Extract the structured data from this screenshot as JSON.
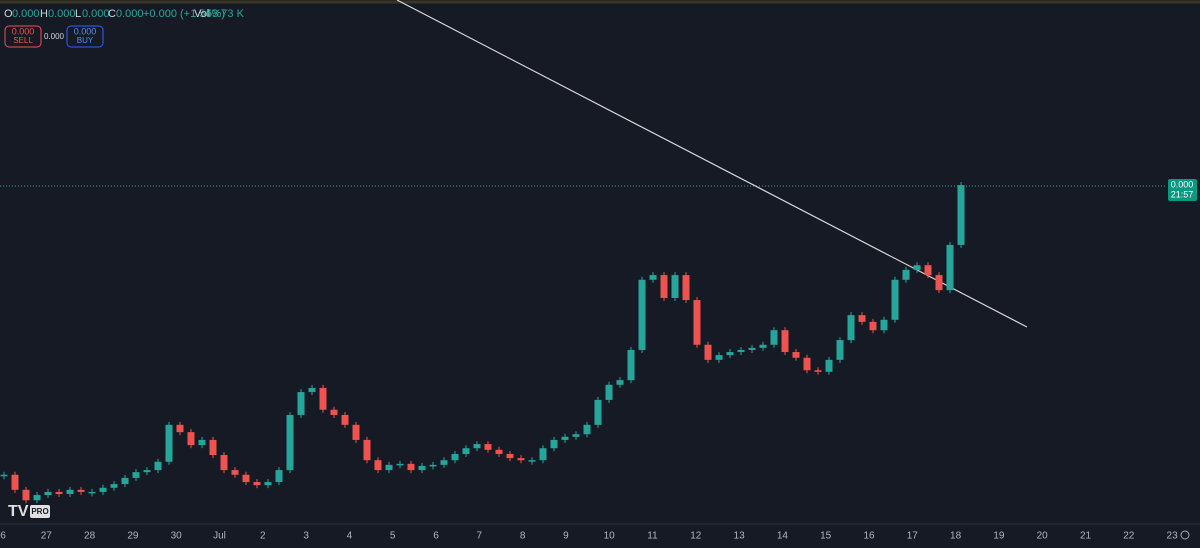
{
  "header": {
    "open_label": "O",
    "open": "0.000",
    "high_label": "H",
    "high": "0.000",
    "low_label": "L",
    "low": "0.000",
    "close_label": "C",
    "close": "0.000",
    "change": "+0.000 (+1.54%)",
    "volume_label": "Vol",
    "volume": "53.73 K"
  },
  "order_panel": {
    "sell_price": "0.000",
    "sell_label": "SELL",
    "spread": "0.000",
    "buy_price": "0.000",
    "buy_label": "BUY"
  },
  "price_label": {
    "price": "0.000",
    "countdown": "21:57"
  },
  "chart_data": {
    "type": "candlestick",
    "ylim": [
      0,
      100
    ],
    "colors": {
      "up": "#26a69a",
      "down": "#ef5350"
    },
    "values": [
      8.7,
      5.8,
      3.8,
      4.8,
      5.4,
      5.0,
      5.8,
      5.4,
      5.4,
      6.2,
      6.9,
      8.1,
      9.2,
      9.6,
      11.2,
      18.3,
      16.9,
      14.4,
      15.4,
      12.5,
      9.6,
      8.7,
      7.3,
      6.7,
      7.3,
      9.6,
      20.2,
      24.6,
      25.4,
      21.2,
      20.2,
      18.3,
      15.4,
      11.5,
      9.6,
      10.6,
      10.8,
      9.6,
      10.4,
      10.6,
      11.5,
      12.7,
      13.8,
      14.6,
      13.5,
      12.7,
      11.9,
      11.5,
      11.5,
      13.8,
      15.4,
      16.0,
      16.5,
      18.3,
      23.1,
      26.0,
      26.9,
      32.7,
      46.2,
      47.1,
      42.7,
      47.1,
      42.3,
      33.7,
      30.8,
      31.7,
      32.3,
      32.7,
      33.1,
      33.7,
      36.5,
      32.3,
      31.2,
      28.8,
      28.5,
      30.8,
      34.6,
      39.4,
      38.1,
      36.5,
      38.5,
      46.2,
      48.1,
      49.0,
      47.1,
      44.2,
      52.9,
      64.4
    ]
  },
  "x_axis": {
    "labels": [
      "6",
      "27",
      "28",
      "29",
      "30",
      "Jul",
      "2",
      "3",
      "4",
      "5",
      "6",
      "7",
      "8",
      "9",
      "10",
      "11",
      "12",
      "13",
      "14",
      "15",
      "16",
      "17",
      "18",
      "19",
      "20",
      "21",
      "22",
      "23"
    ]
  },
  "logo": {
    "badge": "PRO"
  }
}
